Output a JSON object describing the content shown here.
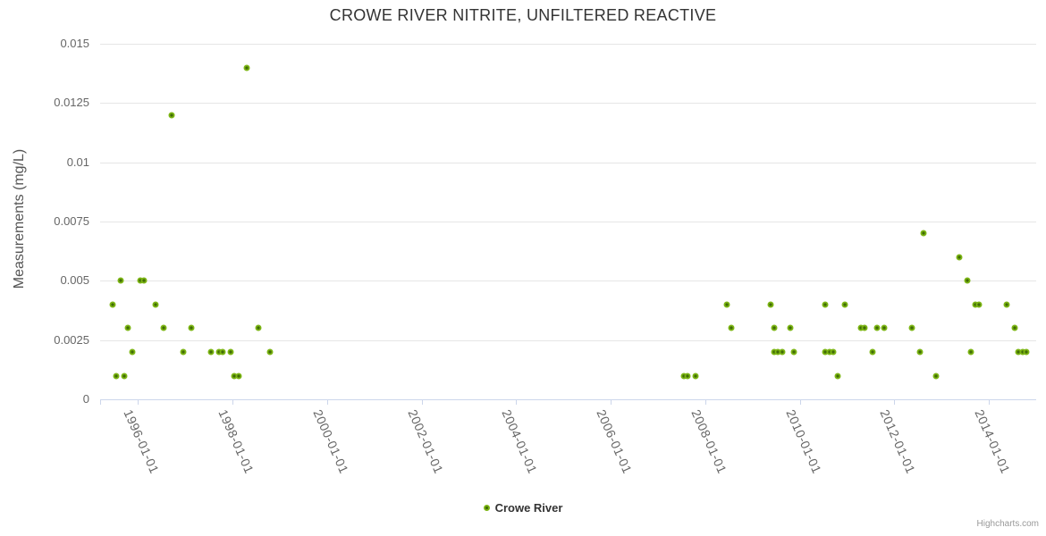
{
  "title": "CROWE RIVER NITRITE, UNFILTERED REACTIVE",
  "legend": {
    "label": "Crowe River"
  },
  "credits": "Highcharts.com",
  "colors": {
    "title_text": "#333333",
    "axis_label": "#666666",
    "axis_title": "#555555",
    "legend_text": "#333333",
    "credits_text": "#999999",
    "grid_line": "#e6e6e6",
    "axis_line": "#ccd6eb",
    "marker_outer": "#7cb514",
    "marker_inner": "#406c06"
  },
  "chart_data": {
    "type": "scatter",
    "title": "CROWE RIVER NITRITE, UNFILTERED REACTIVE",
    "xlabel": "",
    "ylabel": "Measurements (mg/L)",
    "x_tick_years": [
      1996,
      1998,
      2000,
      2002,
      2004,
      2006,
      2008,
      2010,
      2012,
      2014
    ],
    "x_tick_labels": [
      "1996-01-01",
      "1998-01-01",
      "2000-01-01",
      "2002-01-01",
      "2004-01-01",
      "2006-01-01",
      "2008-01-01",
      "2010-01-01",
      "2012-01-01",
      "2014-01-01"
    ],
    "y_ticks": [
      0,
      0.0025,
      0.005,
      0.0075,
      0.01,
      0.0125,
      0.015
    ],
    "y_tick_labels": [
      "0",
      "0.0025",
      "0.005",
      "0.0075",
      "0.01",
      "0.0125",
      "0.015"
    ],
    "xlim_decimal_years": [
      1995.2,
      2015.0
    ],
    "ylim": [
      0,
      0.015
    ],
    "grid": "horizontal-only",
    "legend_position": "bottom-center",
    "series": [
      {
        "name": "Crowe River",
        "points": [
          [
            "1995-06",
            0.004
          ],
          [
            "1995-07",
            0.001
          ],
          [
            "1995-08",
            0.005
          ],
          [
            "1995-09",
            0.001
          ],
          [
            "1995-10",
            0.003
          ],
          [
            "1995-11",
            0.002
          ],
          [
            "1996-01",
            0.005
          ],
          [
            "1996-02",
            0.005
          ],
          [
            "1996-05",
            0.004
          ],
          [
            "1996-07",
            0.003
          ],
          [
            "1996-09",
            0.012
          ],
          [
            "1996-12",
            0.002
          ],
          [
            "1997-02",
            0.003
          ],
          [
            "1997-07",
            0.002
          ],
          [
            "1997-09",
            0.002
          ],
          [
            "1997-10",
            0.002
          ],
          [
            "1997-12",
            0.002
          ],
          [
            "1998-01",
            0.001
          ],
          [
            "1998-02",
            0.001
          ],
          [
            "1998-04",
            0.014
          ],
          [
            "1998-07",
            0.003
          ],
          [
            "1998-10",
            0.002
          ],
          [
            "2007-07",
            0.001
          ],
          [
            "2007-08",
            0.001
          ],
          [
            "2007-10",
            0.001
          ],
          [
            "2008-06",
            0.004
          ],
          [
            "2008-07",
            0.003
          ],
          [
            "2009-05",
            0.004
          ],
          [
            "2009-06",
            0.003
          ],
          [
            "2009-06",
            0.002
          ],
          [
            "2009-07",
            0.002
          ],
          [
            "2009-08",
            0.002
          ],
          [
            "2009-10",
            0.003
          ],
          [
            "2009-11",
            0.002
          ],
          [
            "2010-07",
            0.004
          ],
          [
            "2010-07",
            0.002
          ],
          [
            "2010-08",
            0.002
          ],
          [
            "2010-09",
            0.002
          ],
          [
            "2010-10",
            0.001
          ],
          [
            "2010-12",
            0.004
          ],
          [
            "2011-04",
            0.003
          ],
          [
            "2011-05",
            0.003
          ],
          [
            "2011-07",
            0.002
          ],
          [
            "2011-08",
            0.003
          ],
          [
            "2011-10",
            0.003
          ],
          [
            "2012-05",
            0.003
          ],
          [
            "2012-07",
            0.002
          ],
          [
            "2012-08",
            0.007
          ],
          [
            "2012-11",
            0.001
          ],
          [
            "2013-05",
            0.006
          ],
          [
            "2013-07",
            0.005
          ],
          [
            "2013-08",
            0.002
          ],
          [
            "2013-09",
            0.004
          ],
          [
            "2013-10",
            0.004
          ],
          [
            "2014-05",
            0.004
          ],
          [
            "2014-07",
            0.003
          ],
          [
            "2014-08",
            0.002
          ],
          [
            "2014-09",
            0.002
          ],
          [
            "2014-10",
            0.002
          ]
        ]
      }
    ]
  }
}
